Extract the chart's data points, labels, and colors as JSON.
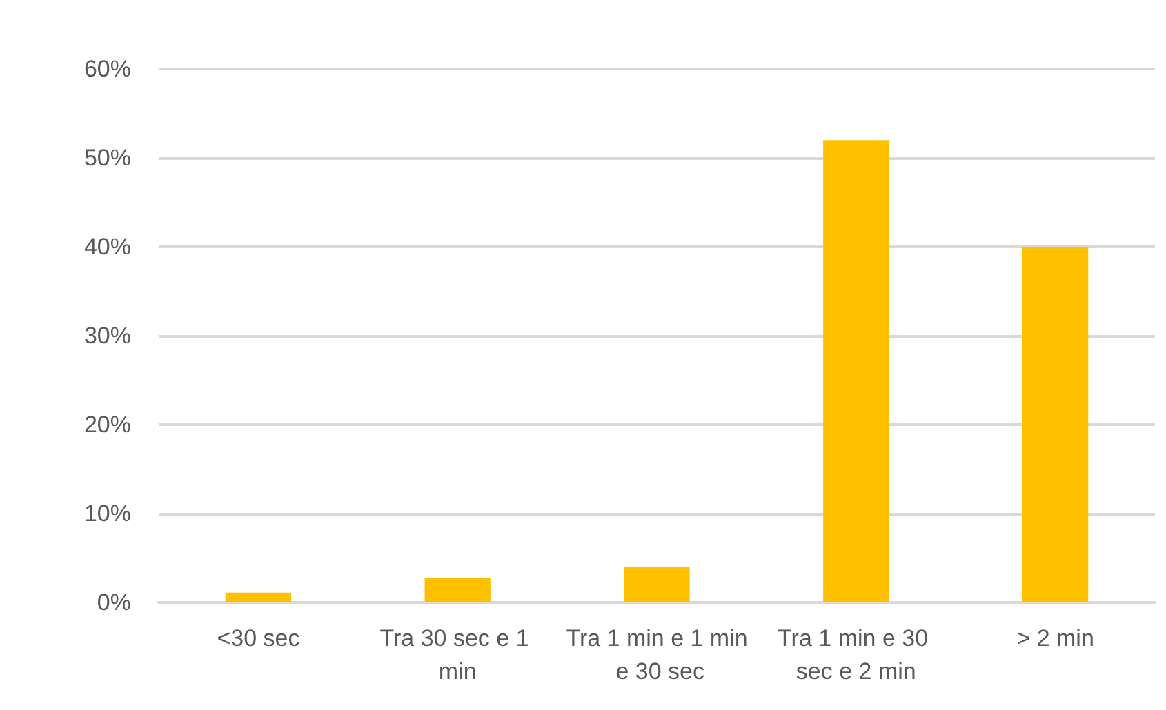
{
  "chart_data": {
    "type": "bar",
    "categories": [
      "<30 sec",
      "Tra 30 sec e 1 min",
      "Tra 1 min e 1 min e 30 sec",
      "Tra 1 min e 30 sec e 2 min",
      "> 2 min"
    ],
    "values": [
      1.1,
      2.8,
      4,
      52,
      40
    ],
    "color": "#ffc000",
    "ylim": [
      0,
      60
    ],
    "yticks": [
      {
        "value": 0,
        "label": "0%"
      },
      {
        "value": 10,
        "label": "10%"
      },
      {
        "value": 20,
        "label": "20%"
      },
      {
        "value": 30,
        "label": "30%"
      },
      {
        "value": 40,
        "label": "40%"
      },
      {
        "value": 50,
        "label": "50%"
      },
      {
        "value": 60,
        "label": "60%"
      }
    ],
    "grid": "y"
  }
}
